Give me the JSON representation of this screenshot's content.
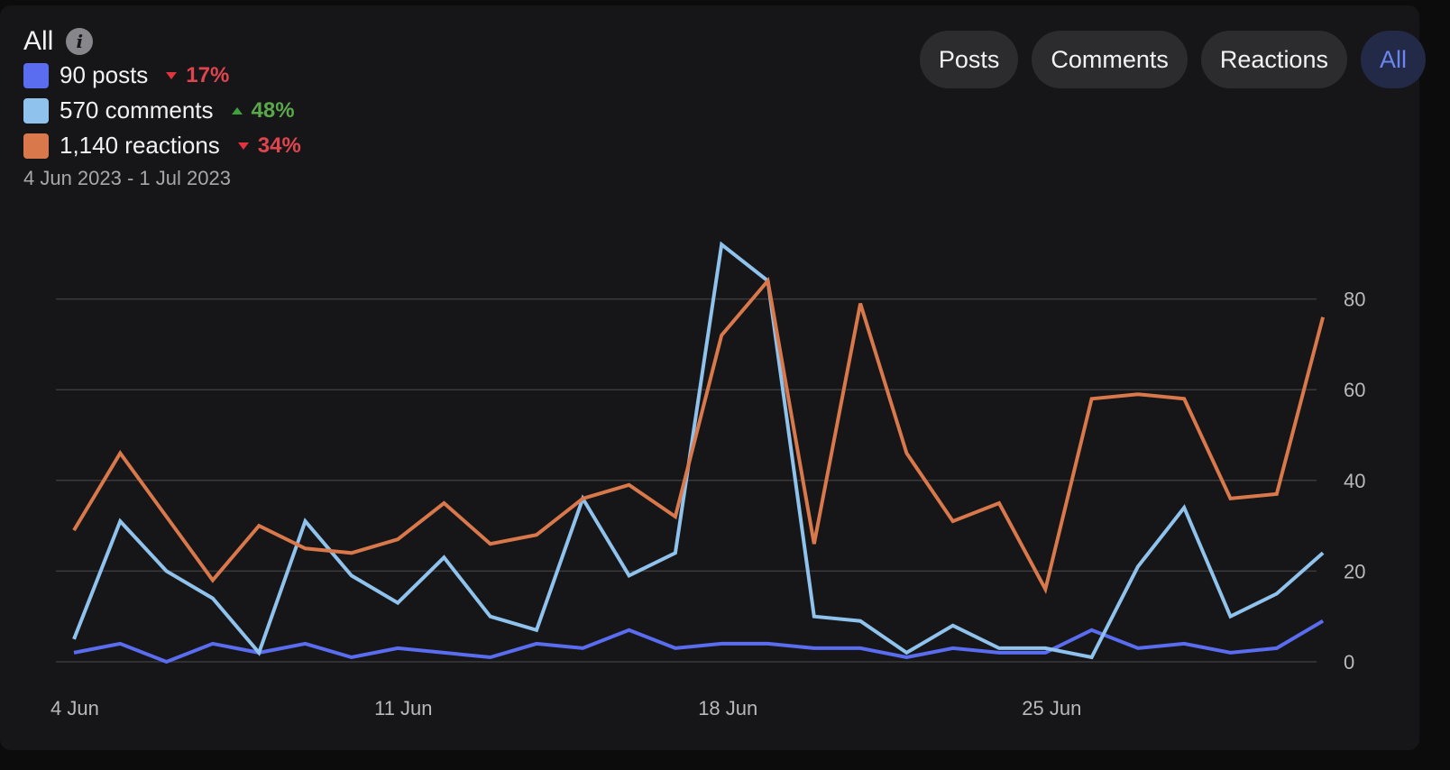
{
  "header": {
    "title": "All",
    "date_range": "4 Jun 2023 - 1 Jul 2023"
  },
  "legend": [
    {
      "label": "90 posts",
      "trend": "down",
      "change": "17%",
      "color": "#5a6cf0",
      "change_color": "#e0454f"
    },
    {
      "label": "570 comments",
      "trend": "up",
      "change": "48%",
      "color": "#8fc2ec",
      "change_color": "#5aa84a"
    },
    {
      "label": "1,140 reactions",
      "trend": "down",
      "change": "34%",
      "color": "#d9784a",
      "change_color": "#e0454f"
    }
  ],
  "tabs": [
    {
      "label": "Posts",
      "active": false
    },
    {
      "label": "Comments",
      "active": false
    },
    {
      "label": "Reactions",
      "active": false
    },
    {
      "label": "All",
      "active": true
    }
  ],
  "colors": {
    "accent": "#6b86ee",
    "posts": "#5a6cf0",
    "comments": "#8fc2ec",
    "reactions": "#d9784a"
  },
  "chart_data": {
    "type": "line",
    "x": [
      "4 Jun",
      "5 Jun",
      "6 Jun",
      "7 Jun",
      "8 Jun",
      "9 Jun",
      "10 Jun",
      "11 Jun",
      "12 Jun",
      "13 Jun",
      "14 Jun",
      "15 Jun",
      "16 Jun",
      "17 Jun",
      "18 Jun",
      "19 Jun",
      "20 Jun",
      "21 Jun",
      "22 Jun",
      "23 Jun",
      "24 Jun",
      "25 Jun",
      "26 Jun",
      "27 Jun",
      "28 Jun",
      "29 Jun",
      "30 Jun",
      "1 Jul"
    ],
    "x_tick_labels": [
      "4 Jun",
      "11 Jun",
      "18 Jun",
      "25 Jun"
    ],
    "y_ticks": [
      0,
      20,
      40,
      60,
      80
    ],
    "ylim": [
      0,
      80
    ],
    "y_axis_side": "right",
    "grid": true,
    "series": [
      {
        "name": "posts",
        "color": "#5a6cf0",
        "values": [
          2,
          4,
          0,
          4,
          2,
          4,
          1,
          3,
          2,
          1,
          4,
          3,
          7,
          3,
          4,
          4,
          3,
          3,
          1,
          3,
          2,
          2,
          7,
          3,
          4,
          2,
          3,
          9
        ]
      },
      {
        "name": "comments",
        "color": "#8fc2ec",
        "values": [
          5,
          31,
          20,
          14,
          2,
          31,
          19,
          13,
          23,
          10,
          7,
          36,
          19,
          24,
          92,
          84,
          10,
          9,
          2,
          8,
          3,
          3,
          1,
          21,
          34,
          10,
          15,
          24
        ]
      },
      {
        "name": "reactions",
        "color": "#d9784a",
        "values": [
          29,
          46,
          32,
          18,
          30,
          25,
          24,
          27,
          35,
          26,
          28,
          36,
          39,
          32,
          72,
          84,
          26,
          79,
          46,
          31,
          35,
          16,
          58,
          59,
          58,
          36,
          37,
          76
        ]
      }
    ]
  }
}
